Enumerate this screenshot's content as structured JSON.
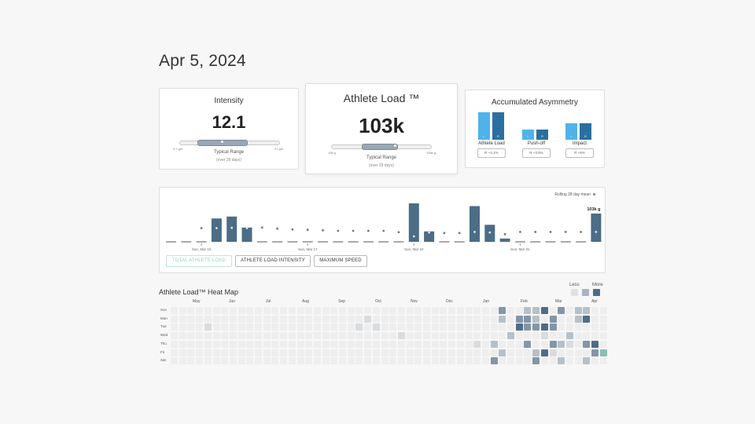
{
  "page": {
    "date": "Apr 5, 2024"
  },
  "intensity": {
    "title": "Intensity",
    "value": "12.1",
    "min_label": "3.7 g/s",
    "max_label": "21 g/s",
    "range_label": "Typical Range",
    "range_sub": "(over 28 days)"
  },
  "athlete_load": {
    "title": "Athlete Load ™",
    "value": "103k",
    "min_label": "13k g",
    "max_label": "135k g",
    "range_label": "Typical Range",
    "range_sub": "(over 28 days)"
  },
  "asymmetry": {
    "title": "Accumulated Asymmetry",
    "groups": [
      {
        "name": "Athlete Load",
        "left": "L",
        "right": "R",
        "pill": "R +4.1%"
      },
      {
        "name": "Push-off",
        "left": "L",
        "right": "R",
        "pill": "R +3.5%"
      },
      {
        "name": "Impact",
        "left": "L",
        "right": "R",
        "pill": "R +5%"
      }
    ]
  },
  "trend": {
    "legend": "Rolling 28 day mean",
    "last_value_label": "103k g",
    "x_labels": [
      "Sun, Mar 10",
      "Sun, Mar 17",
      "Sun, Mar 24",
      "Sun, Mar 31"
    ],
    "buttons": [
      "TOTAL ATHLETE LOAD",
      "ATHLETE LOAD INTENSITY",
      "MAXIMUM SPEED"
    ]
  },
  "chart_data": {
    "type": "bar",
    "title": "Athlete Load",
    "series": [
      {
        "name": "Athlete Load",
        "values": [
          0,
          0,
          0,
          85,
          92,
          52,
          0,
          0,
          0,
          0,
          0,
          0,
          0,
          0,
          0,
          0,
          140,
          38,
          0,
          0,
          130,
          62,
          12,
          0,
          0,
          0,
          0,
          0,
          103
        ]
      },
      {
        "name": "Rolling 28 day mean",
        "values": [
          0,
          0,
          50,
          50,
          51,
          50,
          52,
          48,
          45,
          44,
          42,
          40,
          40,
          40,
          40,
          35,
          20,
          34,
          32,
          32,
          36,
          34,
          28,
          36,
          36,
          36,
          36,
          36,
          36
        ]
      }
    ],
    "ylim": [
      0,
      160
    ]
  },
  "heatmap": {
    "title": "Athlete Load™ Heat Map",
    "legend_less": "Less",
    "legend_more": "More",
    "months": [
      "May",
      "Jun",
      "Jul",
      "Aug",
      "Sep",
      "Oct",
      "Nov",
      "Dec",
      "Jan",
      "Feb",
      "Mar",
      "Apr"
    ],
    "days": [
      "Sun",
      "Mon",
      "Tue",
      "Wed",
      "Thu",
      "Fri",
      "Sat"
    ]
  },
  "colors": {
    "bar": "#4b6d86",
    "left": "#4fb3ea",
    "right": "#2a6f9f",
    "heat": [
      "#eeeeee",
      "#d9dcdf",
      "#b6c0c9",
      "#8396a7",
      "#4f6d88"
    ]
  }
}
